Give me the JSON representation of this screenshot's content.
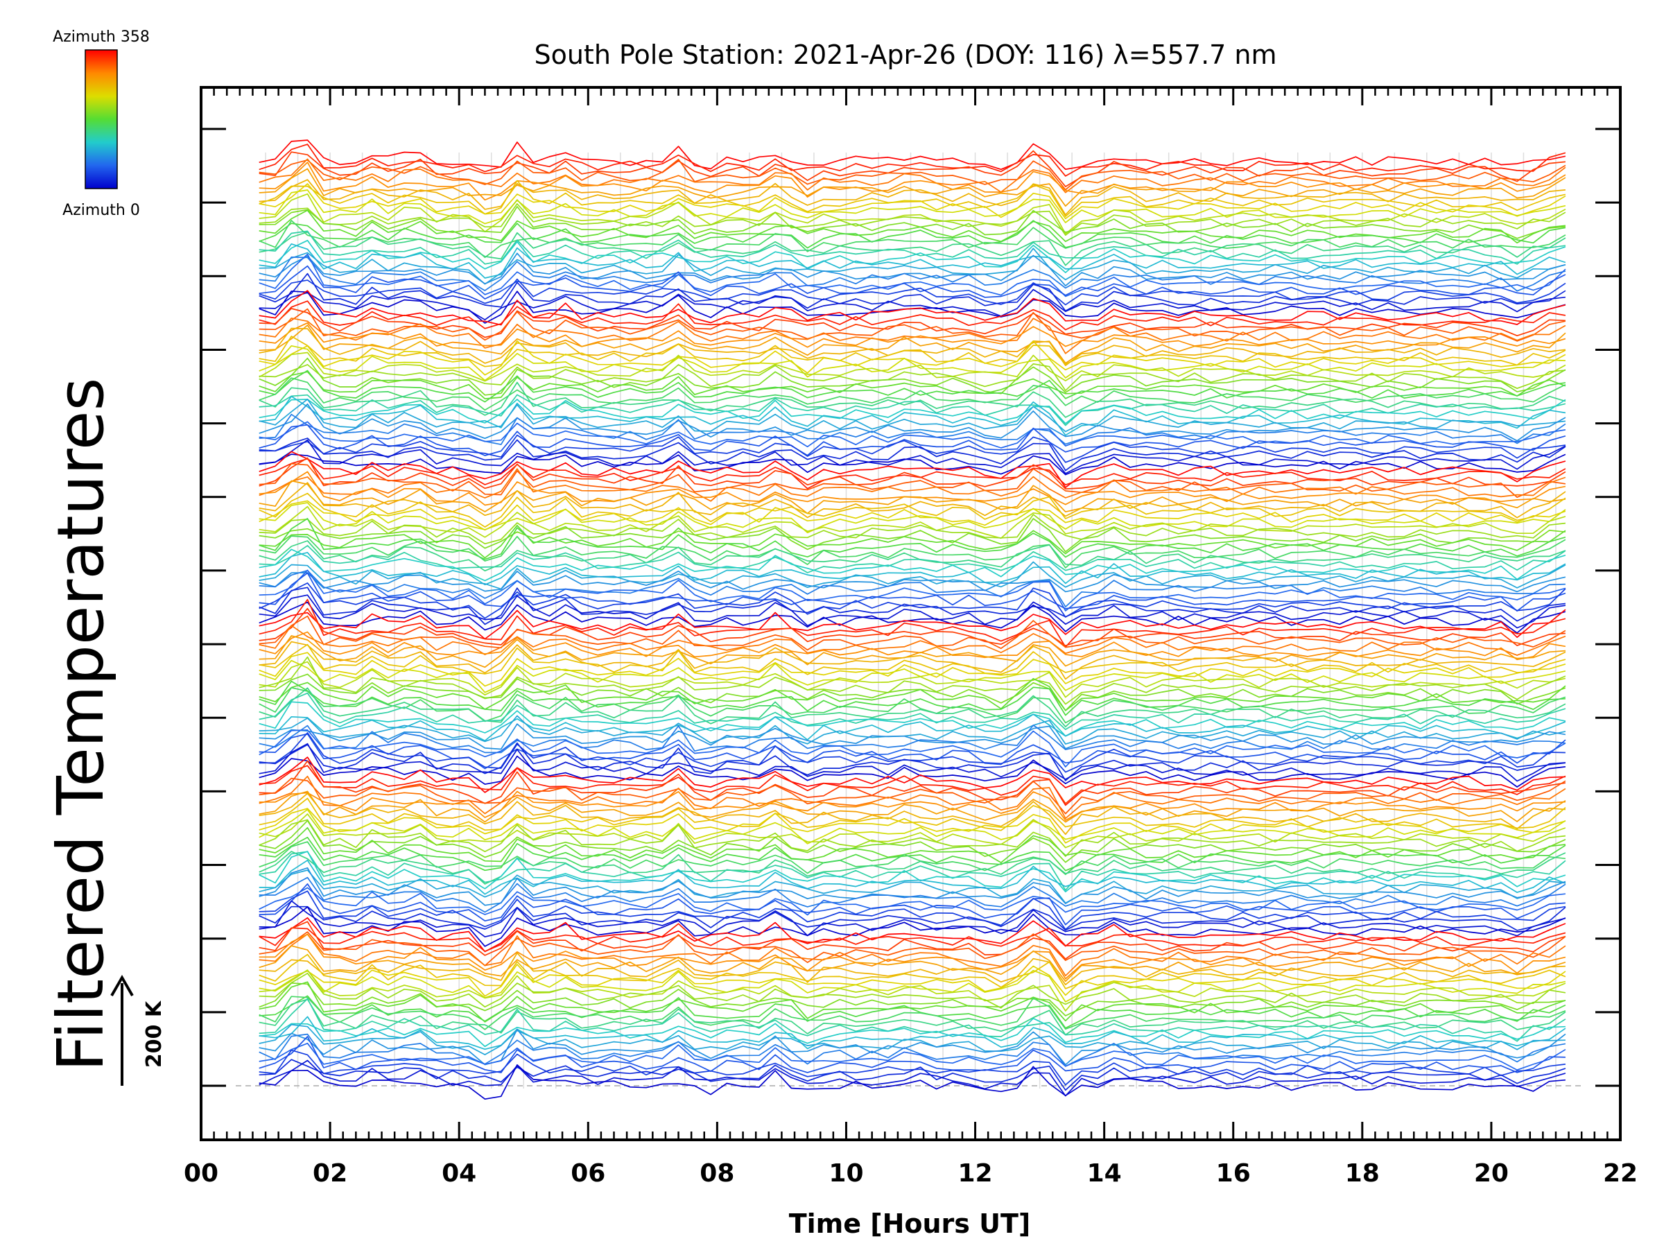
{
  "chart_data": {
    "type": "line",
    "title": "South Pole Station: 2021-Apr-26 (DOY: 116) λ=557.7 nm",
    "xlabel": "Time [Hours UT]",
    "ylabel": "Filtered Temperatures",
    "xlim": [
      0,
      22
    ],
    "x_tick_labels": [
      "00",
      "02",
      "04",
      "06",
      "08",
      "10",
      "12",
      "14",
      "16",
      "18",
      "20",
      "22"
    ],
    "x_data_range": [
      0.9,
      21.3
    ],
    "vertical_grid": true,
    "colorbar": {
      "top_label": "Azimuth 358",
      "bottom_label": "Azimuth 0",
      "colors": [
        "#ff0000",
        "#ff8800",
        "#dddd00",
        "#55dd33",
        "#22cccc",
        "#2266ee",
        "#0000cc"
      ]
    },
    "scale_bar": {
      "label": "200 K"
    },
    "series_count": 180,
    "series_offset_step_K": 40,
    "azimuth_range": [
      0,
      358
    ],
    "line_color_by": "azimuth"
  }
}
